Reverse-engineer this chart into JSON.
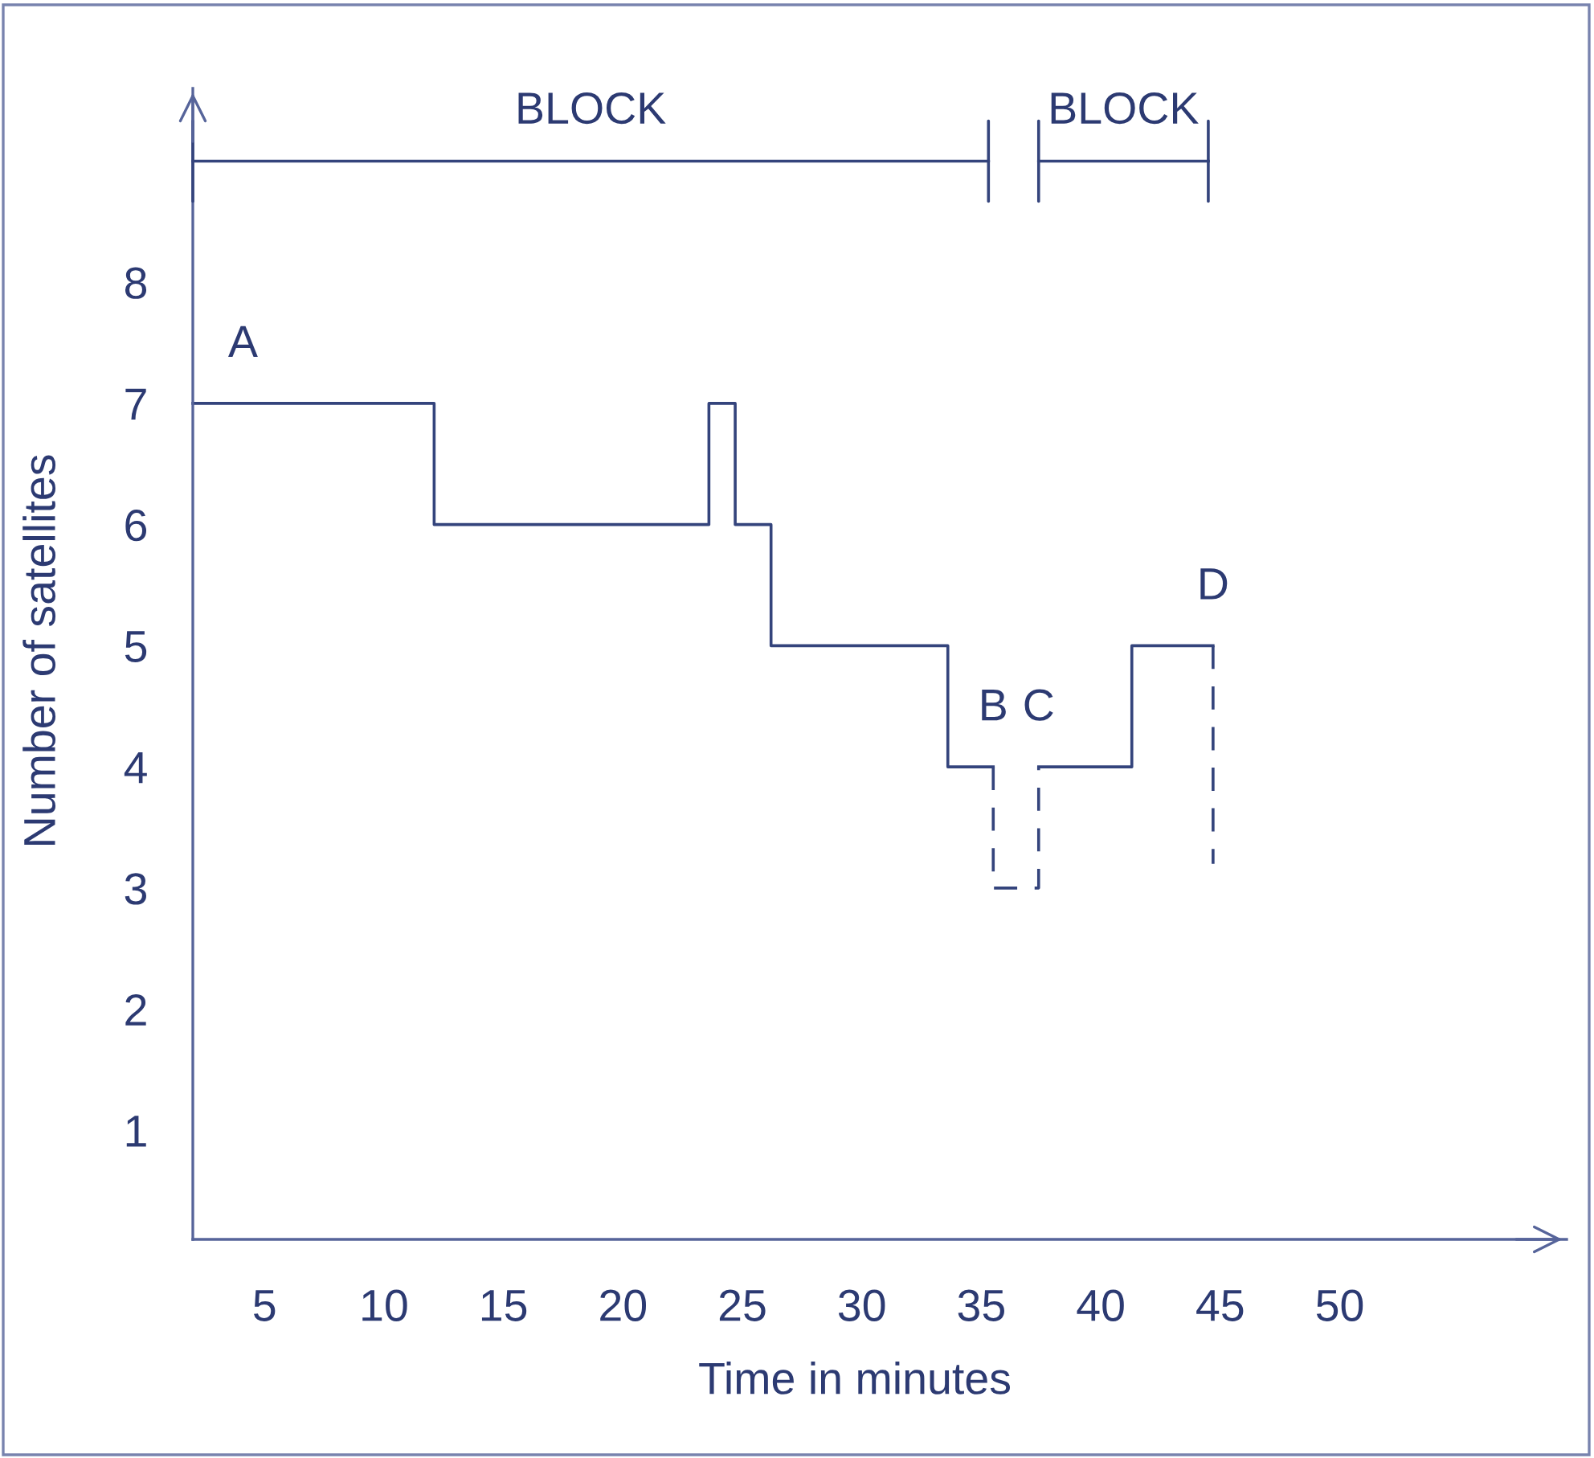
{
  "chart_data": {
    "type": "step",
    "xlabel": "Time in minutes",
    "ylabel": "Number of satellites",
    "xlim": [
      2,
      59.5
    ],
    "ylim": [
      0.1,
      9.6
    ],
    "xticks": [
      5,
      10,
      15,
      20,
      25,
      30,
      35,
      40,
      45,
      50
    ],
    "yticks": [
      1,
      2,
      3,
      4,
      5,
      6,
      7,
      8
    ],
    "series": [
      {
        "color": "#34447c",
        "line_style": "solid",
        "x": [
          2.0,
          12.1,
          23.6,
          24.7,
          26.2,
          33.6,
          35.5
        ],
        "values": [
          7,
          6,
          7,
          6,
          5,
          4,
          4
        ]
      },
      {
        "type": "line",
        "color": "#34447c",
        "line_style": "dashed",
        "x": [
          35.5,
          35.5,
          37.4,
          37.4
        ],
        "values": [
          4,
          3,
          3,
          4
        ]
      },
      {
        "color": "#34447c",
        "line_style": "solid",
        "x": [
          37.4,
          41.3,
          44.7
        ],
        "values": [
          4,
          5,
          5
        ]
      },
      {
        "type": "line",
        "color": "#34447c",
        "line_style": "dashed",
        "x": [
          44.7,
          44.7
        ],
        "values": [
          5,
          3.2
        ]
      },
      {
        "type": "line",
        "name": "BLOCK",
        "color": "#34447c",
        "line_style": "solid",
        "x": [
          2.0,
          35.3
        ],
        "values": [
          9,
          9
        ]
      },
      {
        "type": "line",
        "name": "BLOCK",
        "color": "#34447c",
        "line_style": "solid",
        "x": [
          37.4,
          44.5
        ],
        "values": [
          9,
          9
        ]
      }
    ],
    "annotations": [
      {
        "text": "A",
        "x": 4.1,
        "y": 7
      },
      {
        "text": "B",
        "x": 35.5,
        "y": 4
      },
      {
        "text": "C",
        "x": 37.4,
        "y": 4
      },
      {
        "text": "D",
        "x": 44.7,
        "y": 5
      }
    ]
  }
}
